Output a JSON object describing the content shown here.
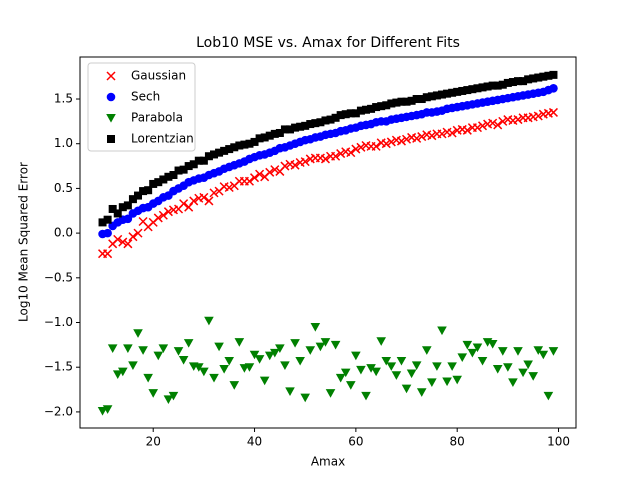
{
  "chart_data": {
    "type": "scatter",
    "title": "Lob10 MSE vs. Amax for Different Fits",
    "x_label": "Amax",
    "y_label": "Log10 Mean Squared Error",
    "x": [
      10,
      11,
      12,
      13,
      14,
      15,
      16,
      17,
      18,
      19,
      20,
      21,
      22,
      23,
      24,
      25,
      26,
      27,
      28,
      29,
      30,
      31,
      32,
      33,
      34,
      35,
      36,
      37,
      38,
      39,
      40,
      41,
      42,
      43,
      44,
      45,
      46,
      47,
      48,
      49,
      50,
      51,
      52,
      53,
      54,
      55,
      56,
      57,
      58,
      59,
      60,
      61,
      62,
      63,
      64,
      65,
      66,
      67,
      68,
      69,
      70,
      71,
      72,
      73,
      74,
      75,
      76,
      77,
      78,
      79,
      80,
      81,
      82,
      83,
      84,
      85,
      86,
      87,
      88,
      89,
      90,
      91,
      92,
      93,
      94,
      95,
      96,
      97,
      98,
      99
    ],
    "series": [
      {
        "name": "Gaussian",
        "color": "#ff0000",
        "marker": "x",
        "values": [
          -0.23,
          -0.23,
          -0.12,
          -0.07,
          -0.1,
          -0.12,
          -0.04,
          0.0,
          0.13,
          0.07,
          0.12,
          0.17,
          0.2,
          0.24,
          0.26,
          0.27,
          0.33,
          0.29,
          0.36,
          0.39,
          0.4,
          0.36,
          0.45,
          0.47,
          0.52,
          0.51,
          0.53,
          0.58,
          0.58,
          0.58,
          0.62,
          0.66,
          0.63,
          0.68,
          0.71,
          0.69,
          0.75,
          0.77,
          0.76,
          0.79,
          0.8,
          0.83,
          0.84,
          0.84,
          0.83,
          0.86,
          0.86,
          0.89,
          0.91,
          0.9,
          0.94,
          0.96,
          0.98,
          0.97,
          0.97,
          1.01,
          1.0,
          1.02,
          1.04,
          1.03,
          1.05,
          1.07,
          1.06,
          1.08,
          1.1,
          1.09,
          1.11,
          1.11,
          1.13,
          1.12,
          1.15,
          1.16,
          1.15,
          1.18,
          1.18,
          1.2,
          1.22,
          1.23,
          1.21,
          1.25,
          1.27,
          1.26,
          1.27,
          1.29,
          1.29,
          1.3,
          1.31,
          1.33,
          1.34,
          1.35
        ]
      },
      {
        "name": "Sech",
        "color": "#0000ff",
        "marker": "circle",
        "values": [
          -0.01,
          0.0,
          0.08,
          0.12,
          0.15,
          0.16,
          0.22,
          0.25,
          0.28,
          0.29,
          0.33,
          0.36,
          0.4,
          0.42,
          0.47,
          0.5,
          0.53,
          0.57,
          0.59,
          0.61,
          0.62,
          0.65,
          0.67,
          0.69,
          0.72,
          0.74,
          0.76,
          0.78,
          0.8,
          0.83,
          0.85,
          0.87,
          0.88,
          0.9,
          0.92,
          0.95,
          0.96,
          0.98,
          1.0,
          1.02,
          1.04,
          1.05,
          1.07,
          1.08,
          1.1,
          1.11,
          1.12,
          1.14,
          1.15,
          1.17,
          1.18,
          1.2,
          1.21,
          1.22,
          1.24,
          1.25,
          1.25,
          1.27,
          1.28,
          1.29,
          1.3,
          1.31,
          1.32,
          1.33,
          1.35,
          1.35,
          1.36,
          1.37,
          1.39,
          1.4,
          1.41,
          1.42,
          1.43,
          1.44,
          1.45,
          1.46,
          1.47,
          1.48,
          1.49,
          1.5,
          1.51,
          1.52,
          1.53,
          1.54,
          1.55,
          1.56,
          1.57,
          1.58,
          1.6,
          1.62
        ]
      },
      {
        "name": "Parabola",
        "color": "#008000",
        "marker": "triangle-down",
        "values": [
          -1.99,
          -1.97,
          -1.29,
          -1.58,
          -1.55,
          -1.29,
          -1.48,
          -1.12,
          -1.31,
          -1.62,
          -1.79,
          -1.37,
          -1.29,
          -1.86,
          -1.82,
          -1.32,
          -1.42,
          -1.23,
          -1.49,
          -1.5,
          -1.55,
          -0.98,
          -1.62,
          -1.27,
          -1.52,
          -1.43,
          -1.7,
          -1.22,
          -1.51,
          -1.5,
          -1.36,
          -1.41,
          -1.65,
          -1.37,
          -1.34,
          -1.29,
          -1.48,
          -1.77,
          -1.23,
          -1.43,
          -1.84,
          -1.31,
          -1.05,
          -1.27,
          -1.22,
          -1.79,
          -1.25,
          -1.62,
          -1.56,
          -1.7,
          -1.37,
          -1.53,
          -1.82,
          -1.51,
          -1.55,
          -1.21,
          -1.43,
          -1.49,
          -1.59,
          -1.43,
          -1.74,
          -1.57,
          -1.48,
          -1.78,
          -1.31,
          -1.67,
          -1.49,
          -1.09,
          -1.66,
          -1.49,
          -1.64,
          -1.39,
          -1.25,
          -1.34,
          -1.28,
          -1.43,
          -1.22,
          -1.24,
          -1.52,
          -1.32,
          -1.5,
          -1.67,
          -1.32,
          -1.56,
          -1.47,
          -1.6,
          -1.31,
          -1.36,
          -1.82,
          -1.32
        ]
      },
      {
        "name": "Lorentzian",
        "color": "#000000",
        "marker": "square",
        "values": [
          0.12,
          0.15,
          0.27,
          0.22,
          0.29,
          0.31,
          0.38,
          0.42,
          0.47,
          0.48,
          0.55,
          0.57,
          0.6,
          0.63,
          0.65,
          0.7,
          0.71,
          0.75,
          0.77,
          0.81,
          0.81,
          0.86,
          0.88,
          0.9,
          0.92,
          0.94,
          0.96,
          0.98,
          0.99,
          1.0,
          1.02,
          1.06,
          1.07,
          1.09,
          1.11,
          1.12,
          1.16,
          1.16,
          1.18,
          1.19,
          1.2,
          1.22,
          1.23,
          1.24,
          1.26,
          1.27,
          1.29,
          1.32,
          1.33,
          1.34,
          1.34,
          1.37,
          1.38,
          1.39,
          1.41,
          1.42,
          1.43,
          1.45,
          1.46,
          1.47,
          1.47,
          1.48,
          1.5,
          1.5,
          1.52,
          1.53,
          1.54,
          1.55,
          1.56,
          1.57,
          1.58,
          1.59,
          1.6,
          1.61,
          1.62,
          1.63,
          1.64,
          1.65,
          1.65,
          1.66,
          1.68,
          1.69,
          1.7,
          1.7,
          1.72,
          1.73,
          1.74,
          1.75,
          1.76,
          1.77
        ]
      }
    ],
    "xlim": [
      5.55,
      103.45
    ],
    "ylim": [
      -2.18,
      1.97
    ],
    "xticks": [
      20,
      40,
      60,
      80,
      100
    ],
    "yticks": [
      {
        "value": -2.0,
        "label": "−2.0"
      },
      {
        "value": -1.5,
        "label": "−1.5"
      },
      {
        "value": -1.0,
        "label": "−1.0"
      },
      {
        "value": -0.5,
        "label": "−0.5"
      },
      {
        "value": 0.0,
        "label": "0.0"
      },
      {
        "value": 0.5,
        "label": "0.5"
      },
      {
        "value": 1.0,
        "label": "1.0"
      },
      {
        "value": 1.5,
        "label": "1.5"
      }
    ],
    "legend": "upper left",
    "grid": false
  }
}
